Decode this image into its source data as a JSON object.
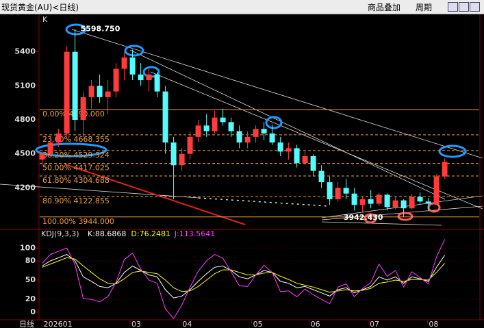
{
  "header": {
    "title": "现货黄金(AU)<日线)",
    "buttons": [
      "商品叠加",
      "周期"
    ]
  },
  "chart_data": [
    {
      "type": "candlestick",
      "label": "K",
      "up_color": "#ff3c3c",
      "down_color": "#54fcfc",
      "xlim": [
        -0.3,
        53.2
      ],
      "ylim": [
        3840,
        5730
      ],
      "yticks": [
        5400,
        5100,
        4800,
        4500,
        4200
      ],
      "candles": [
        [
          4450,
          4520,
          4400,
          4500
        ],
        [
          4500,
          4620,
          4480,
          4600
        ],
        [
          4600,
          4720,
          4560,
          4680
        ],
        [
          4680,
          5450,
          4660,
          5400
        ],
        [
          5400,
          5598.75,
          4700,
          4800
        ],
        [
          4800,
          5050,
          4650,
          5000
        ],
        [
          5000,
          5150,
          4900,
          5100
        ],
        [
          5100,
          5200,
          4950,
          5000
        ],
        [
          5000,
          5150,
          4850,
          5050
        ],
        [
          5050,
          5300,
          5000,
          5250
        ],
        [
          5250,
          5400,
          5150,
          5350
        ],
        [
          5350,
          5420,
          5150,
          5200
        ],
        [
          5200,
          5300,
          5100,
          5150
        ],
        [
          5150,
          5250,
          5050,
          5200
        ],
        [
          5200,
          5220,
          5000,
          5050
        ],
        [
          5050,
          5100,
          4500,
          4600
        ],
        [
          4600,
          4650,
          4100,
          4400
        ],
        [
          4400,
          4550,
          4350,
          4500
        ],
        [
          4500,
          4700,
          4450,
          4650
        ],
        [
          4650,
          4800,
          4600,
          4750
        ],
        [
          4750,
          4850,
          4650,
          4700
        ],
        [
          4700,
          4880,
          4680,
          4820
        ],
        [
          4820,
          4900,
          4750,
          4780
        ],
        [
          4780,
          4820,
          4650,
          4700
        ],
        [
          4700,
          4750,
          4550,
          4600
        ],
        [
          4600,
          4700,
          4550,
          4650
        ],
        [
          4650,
          4750,
          4600,
          4720
        ],
        [
          4720,
          4780,
          4620,
          4680
        ],
        [
          4680,
          4760,
          4580,
          4600
        ],
        [
          4600,
          4650,
          4480,
          4520
        ],
        [
          4520,
          4600,
          4450,
          4550
        ],
        [
          4550,
          4580,
          4380,
          4420
        ],
        [
          4420,
          4520,
          4400,
          4480
        ],
        [
          4480,
          4500,
          4300,
          4350
        ],
        [
          4350,
          4400,
          4200,
          4250
        ],
        [
          4250,
          4300,
          4050,
          4100
        ],
        [
          4100,
          4250,
          4080,
          4200
        ],
        [
          4200,
          4280,
          4100,
          4150
        ],
        [
          4150,
          4200,
          4000,
          4050
        ],
        [
          4050,
          4120,
          3980,
          4100
        ],
        [
          4100,
          4180,
          4020,
          4060
        ],
        [
          4060,
          4160,
          4040,
          4140
        ],
        [
          4140,
          4150,
          4000,
          4030
        ],
        [
          4030,
          4120,
          4010,
          4090
        ],
        [
          4090,
          4100,
          3942.43,
          4020
        ],
        [
          4020,
          4150,
          4010,
          4120
        ],
        [
          4120,
          4160,
          4060,
          4080
        ],
        [
          4080,
          4110,
          4000,
          4060
        ],
        [
          4060,
          4320,
          4050,
          4300
        ],
        [
          4300,
          4460,
          4280,
          4430
        ]
      ],
      "fib_color": "#f0a040",
      "fib_levels": [
        {
          "label": "0.00% 4890.000",
          "value": 4890
        },
        {
          "label": "23.60% 4668.355",
          "value": 4668.355
        },
        {
          "label": "38.20% 4529.324",
          "value": 4529.324
        },
        {
          "label": "50.00% 4417.025",
          "value": 4417.025
        },
        {
          "label": "61.80% 4304.688",
          "value": 4304.688
        },
        {
          "label": "80.90% 4122.855",
          "value": 4122.855
        },
        {
          "label": "100.00% 3944.000",
          "value": 3944
        }
      ],
      "annotations": [
        {
          "label": "5598.750",
          "value": 5598.75,
          "index": 4
        },
        {
          "label": "3942.430",
          "value": 3942.43,
          "index": 44
        }
      ]
    },
    {
      "type": "line",
      "title": "KDJ(9,3,3)",
      "x_label": "日线",
      "xlim": [
        -0.3,
        53.2
      ],
      "ylim": [
        -12,
        127
      ],
      "yticks": [
        100,
        80,
        50,
        20,
        0
      ],
      "xticks": [
        {
          "value": 0,
          "label": "202601"
        },
        {
          "value": 10.7,
          "label": "03"
        },
        {
          "value": 16.9,
          "label": "04"
        },
        {
          "value": 25.5,
          "label": "05"
        },
        {
          "value": 32.5,
          "label": "06"
        },
        {
          "value": 39.7,
          "label": "07"
        },
        {
          "value": 46.9,
          "label": "08"
        }
      ],
      "series": [
        {
          "name": "K:88.6868",
          "color": "#ffffff",
          "values": [
            72,
            80,
            85,
            90,
            80,
            55,
            48,
            40,
            38,
            45,
            62,
            72,
            65,
            58,
            55,
            35,
            22,
            25,
            35,
            48,
            60,
            70,
            72,
            65,
            55,
            52,
            58,
            65,
            62,
            48,
            45,
            38,
            40,
            35,
            30,
            25,
            35,
            38,
            30,
            35,
            40,
            55,
            50,
            55,
            45,
            55,
            52,
            48,
            70,
            88.6868
          ]
        },
        {
          "name": "D:76.2481",
          "color": "#ffff00",
          "values": [
            70,
            75,
            80,
            85,
            83,
            72,
            62,
            52,
            45,
            44,
            52,
            62,
            64,
            62,
            60,
            50,
            38,
            32,
            33,
            40,
            50,
            60,
            66,
            66,
            62,
            58,
            58,
            61,
            62,
            56,
            51,
            45,
            42,
            39,
            35,
            31,
            33,
            35,
            33,
            34,
            37,
            45,
            47,
            50,
            48,
            51,
            51,
            50,
            62,
            76.2481
          ]
        },
        {
          "name": "J:113.5641",
          "color": "#ff40ff",
          "values": [
            76,
            90,
            95,
            100,
            74,
            21,
            20,
            16,
            24,
            47,
            82,
            92,
            67,
            50,
            45,
            5,
            -10,
            11,
            39,
            64,
            80,
            90,
            84,
            63,
            41,
            40,
            58,
            73,
            62,
            32,
            33,
            24,
            36,
            27,
            20,
            13,
            39,
            44,
            24,
            37,
            46,
            75,
            56,
            65,
            39,
            63,
            54,
            44,
            86,
            113.5641
          ]
        }
      ]
    }
  ]
}
